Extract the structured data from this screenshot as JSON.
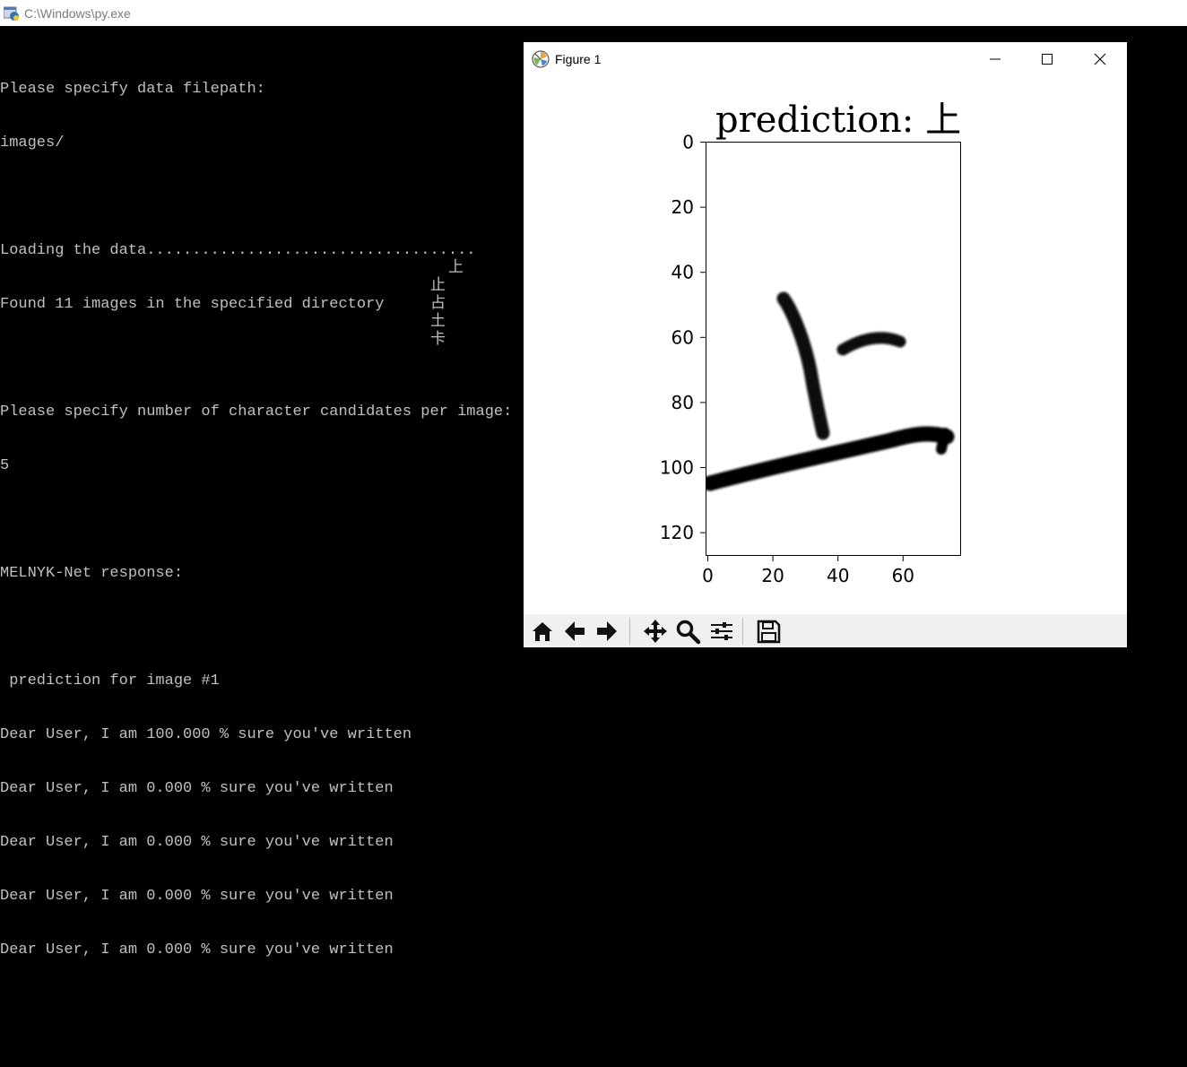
{
  "console": {
    "title": "C:\\Windows\\py.exe",
    "lines": [
      "Please specify data filepath:",
      "images/",
      "",
      "Loading the data....................................",
      "Found 11 images in the specified directory",
      "",
      "Please specify number of character candidates per image:",
      "5",
      "",
      "MELNYK-Net response:",
      "",
      " prediction for image #1",
      "Dear User, I am 100.000 % sure you've written",
      "Dear User, I am 0.000 % sure you've written",
      "Dear User, I am 0.000 % sure you've written",
      "Dear User, I am 0.000 % sure you've written",
      "Dear User, I am 0.000 % sure you've written"
    ],
    "candidates": [
      "上",
      "止",
      "占",
      "土",
      "卡"
    ],
    "text_color": "#c0c0c0",
    "background": "#000000"
  },
  "figure": {
    "title": "Figure 1",
    "plot_title": "prediction: 上",
    "window_buttons": [
      "minimize-icon",
      "maximize-icon",
      "close-icon"
    ],
    "toolbar": [
      "home-icon",
      "back-arrow-icon",
      "forward-arrow-icon",
      "pan-icon",
      "zoom-icon",
      "configure-subplots-icon",
      "save-icon"
    ]
  },
  "chart_data": {
    "type": "heatmap",
    "title": "prediction: 上",
    "xlabel": "",
    "ylabel": "",
    "xlim": [
      0,
      78
    ],
    "ylim": [
      127,
      0
    ],
    "xticks": [
      0,
      20,
      40,
      60
    ],
    "yticks": [
      0,
      20,
      40,
      60,
      80,
      100,
      120
    ],
    "colormap": "gray",
    "content": "handwritten character 上 as dark strokes on a white background"
  }
}
